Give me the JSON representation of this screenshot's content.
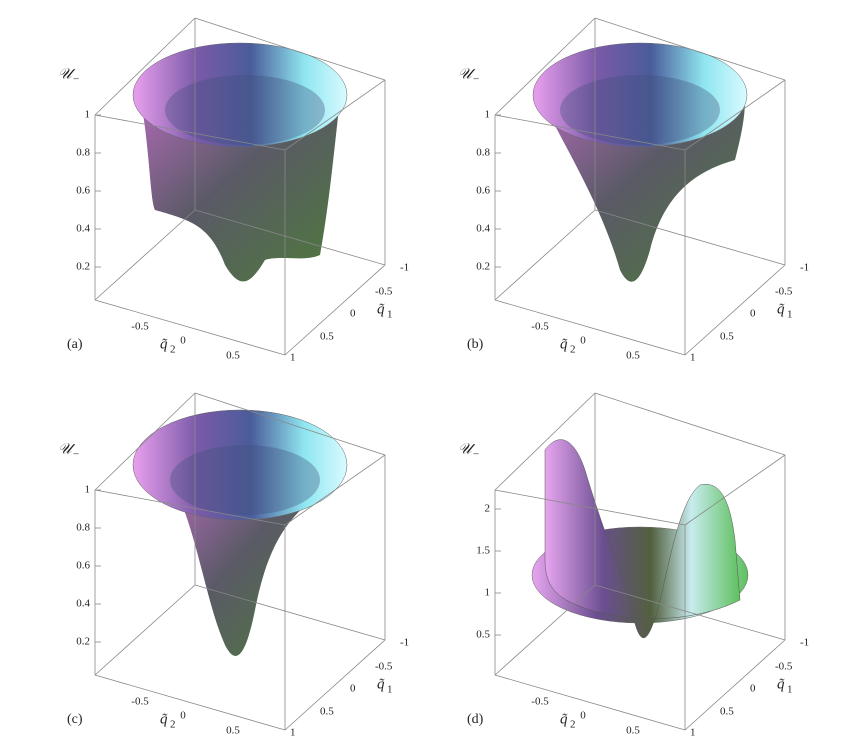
{
  "panels": [
    {
      "label": "(a)",
      "z_label": "𝒰",
      "z_label_sub": "−",
      "z_ticks": [
        "1",
        "0.8",
        "0.6",
        "0.4",
        "0.2"
      ],
      "q1_label": "q̃",
      "q1_sub": "1",
      "q1_ticks": [
        "-1",
        "-0.5",
        "0",
        "0.5",
        "1"
      ],
      "q2_label": "q̃",
      "q2_sub": "2",
      "q2_ticks": [
        "-0.5",
        "0",
        "0.5"
      ]
    },
    {
      "label": "(b)",
      "z_label": "𝒰",
      "z_label_sub": "−",
      "z_ticks": [
        "1",
        "0.8",
        "0.6",
        "0.4",
        "0.2"
      ],
      "q1_label": "q̃",
      "q1_sub": "1",
      "q1_ticks": [
        "-1",
        "-0.5",
        "0",
        "0.5",
        "1"
      ],
      "q2_label": "q̃",
      "q2_sub": "2",
      "q2_ticks": [
        "-0.5",
        "0",
        "0.5"
      ]
    },
    {
      "label": "(c)",
      "z_label": "𝒰",
      "z_label_sub": "−",
      "z_ticks": [
        "1",
        "0.8",
        "0.6",
        "0.4",
        "0.2"
      ],
      "q1_label": "q̃",
      "q1_sub": "1",
      "q1_ticks": [
        "-1",
        "-0.5",
        "0",
        "0.5",
        "1"
      ],
      "q2_label": "q̃",
      "q2_sub": "2",
      "q2_ticks": [
        "-0.5",
        "0",
        "0.5"
      ]
    },
    {
      "label": "(d)",
      "z_label": "𝒰",
      "z_label_sub": "−",
      "z_ticks": [
        "2",
        "1.5",
        "1",
        "0.5"
      ],
      "q1_label": "q̃",
      "q1_sub": "1",
      "q1_ticks": [
        "-1",
        "-0.5",
        "0",
        "0.5",
        "1"
      ],
      "q2_label": "q̃",
      "q2_sub": "2",
      "q2_ticks": [
        "-0.5",
        "0",
        "0.5"
      ]
    }
  ]
}
